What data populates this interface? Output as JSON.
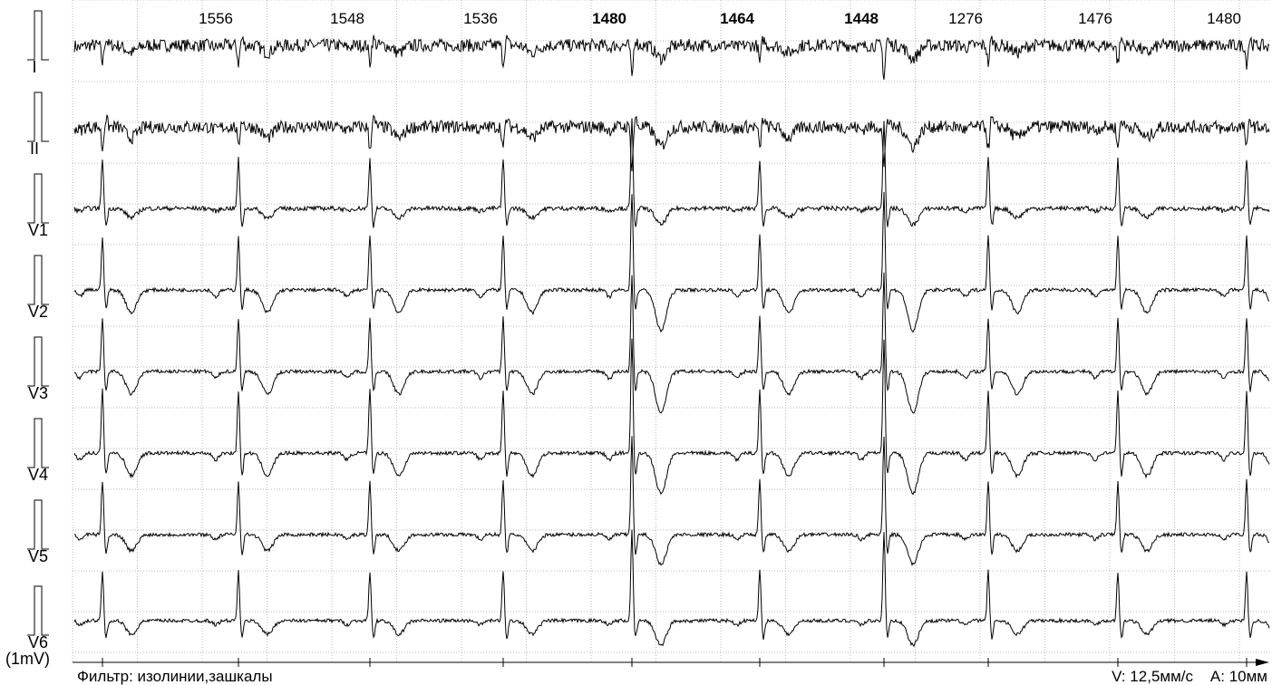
{
  "intervals": [
    {
      "label": "1556",
      "bold": false
    },
    {
      "label": "1548",
      "bold": false
    },
    {
      "label": "1536",
      "bold": false
    },
    {
      "label": "1480",
      "bold": true
    },
    {
      "label": "1464",
      "bold": true
    },
    {
      "label": "1448",
      "bold": true
    },
    {
      "label": "1276",
      "bold": false
    },
    {
      "label": "1476",
      "bold": false
    },
    {
      "label": "1480",
      "bold": false
    }
  ],
  "leads": [
    "I",
    "II",
    "V1",
    "V2",
    "V3",
    "V4",
    "V5",
    "V6"
  ],
  "calibration": "(1mV)",
  "footer": {
    "filter": "Фильтр: изолинии,зашкалы",
    "speed": "V: 12,5мм/с",
    "amplitude": "A: 10мм"
  }
}
